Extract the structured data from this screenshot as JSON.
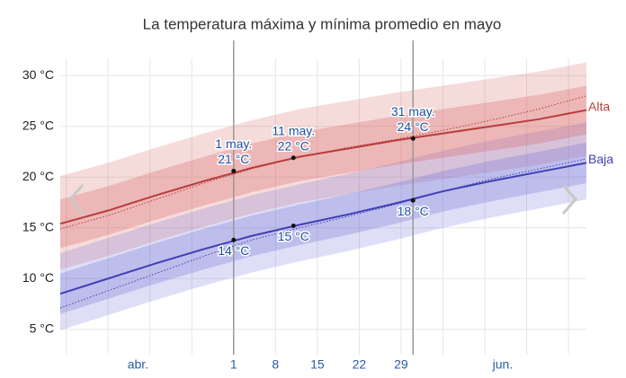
{
  "chart_data": {
    "type": "line",
    "title": "La temperatura máxima y mínima promedio en mayo",
    "x": [
      92,
      100,
      108,
      116,
      124,
      132,
      140,
      148,
      156,
      164,
      172,
      180
    ],
    "xlim": [
      92,
      180
    ],
    "xticks": [
      {
        "value": 105,
        "label": "abr."
      },
      {
        "value": 121,
        "label": "1"
      },
      {
        "value": 128,
        "label": "8"
      },
      {
        "value": 135,
        "label": "15"
      },
      {
        "value": 142,
        "label": "22"
      },
      {
        "value": 149,
        "label": "29"
      },
      {
        "value": 166,
        "label": "jun."
      }
    ],
    "xgrid": [
      93,
      100,
      107,
      114,
      121,
      128,
      135,
      142,
      149,
      156,
      163,
      170,
      177
    ],
    "markers_x": [
      121,
      151
    ],
    "ylim": [
      2.5,
      31.7
    ],
    "yticks": [
      {
        "value": 5,
        "label": "5 °C"
      },
      {
        "value": 10,
        "label": "10 °C"
      },
      {
        "value": 15,
        "label": "15 °C"
      },
      {
        "value": 20,
        "label": "20 °C"
      },
      {
        "value": 25,
        "label": "25 °C"
      },
      {
        "value": 30,
        "label": "30 °C"
      }
    ],
    "grid": true,
    "series": [
      {
        "name": "Alta",
        "color": "#b73d3d",
        "band_color": "#d85a5a",
        "values": [
          15.4,
          16.7,
          18.2,
          19.6,
          20.9,
          22.0,
          22.8,
          23.6,
          24.3,
          25.0,
          25.7,
          26.6
        ],
        "dotted": [
          14.9,
          16.2,
          17.8,
          19.4,
          20.8,
          22.0,
          22.9,
          23.7,
          24.6,
          25.6,
          26.7,
          28.0
        ],
        "p90": [
          20.1,
          21.4,
          22.9,
          24.3,
          25.6,
          26.7,
          27.5,
          28.3,
          29.0,
          29.7,
          30.4,
          31.3
        ],
        "p10": [
          10.9,
          12.2,
          13.7,
          15.1,
          16.4,
          17.5,
          18.3,
          19.1,
          19.8,
          20.5,
          21.2,
          22.1
        ],
        "p75": [
          17.8,
          19.1,
          20.6,
          22.0,
          23.3,
          24.4,
          25.2,
          26.0,
          26.7,
          27.4,
          28.1,
          29.0
        ],
        "p25": [
          13.0,
          14.3,
          15.8,
          17.2,
          18.5,
          19.6,
          20.4,
          21.2,
          21.9,
          22.6,
          23.3,
          24.2
        ]
      },
      {
        "name": "Baja",
        "color": "#3f3fb5",
        "band_color": "#6a6ad8",
        "values": [
          8.5,
          10.0,
          11.5,
          12.9,
          14.2,
          15.3,
          16.3,
          17.4,
          18.6,
          19.6,
          20.5,
          21.4
        ],
        "dotted": [
          7.1,
          8.8,
          10.5,
          12.2,
          13.8,
          15.0,
          16.1,
          17.3,
          18.6,
          19.8,
          20.8,
          21.8
        ],
        "p90": [
          12.5,
          14.0,
          15.5,
          16.9,
          18.2,
          19.3,
          20.3,
          21.4,
          22.6,
          23.6,
          24.5,
          25.4
        ],
        "p10": [
          4.9,
          6.4,
          7.9,
          9.3,
          10.6,
          11.7,
          12.7,
          13.8,
          15.0,
          16.0,
          16.9,
          17.8
        ],
        "p75": [
          10.5,
          12.0,
          13.5,
          14.9,
          16.2,
          17.3,
          18.3,
          19.4,
          20.6,
          21.6,
          22.5,
          23.4
        ],
        "p25": [
          6.5,
          8.0,
          9.5,
          10.9,
          12.2,
          13.3,
          14.3,
          15.4,
          16.6,
          17.6,
          18.5,
          19.4
        ]
      }
    ],
    "annotations": [
      {
        "series": 0,
        "x": 121,
        "y": 20.6,
        "labels": [
          "1 may.",
          "21 °C"
        ]
      },
      {
        "series": 0,
        "x": 131,
        "y": 21.9,
        "labels": [
          "11 may.",
          "22 °C"
        ]
      },
      {
        "series": 0,
        "x": 151,
        "y": 23.8,
        "labels": [
          "31 may.",
          "24 °C"
        ]
      },
      {
        "series": 1,
        "x": 121,
        "y": 13.8,
        "labels": [
          "14 °C"
        ]
      },
      {
        "series": 1,
        "x": 131,
        "y": 15.2,
        "labels": [
          "15 °C"
        ]
      },
      {
        "series": 1,
        "x": 151,
        "y": 17.7,
        "labels": [
          "18 °C"
        ]
      }
    ]
  }
}
